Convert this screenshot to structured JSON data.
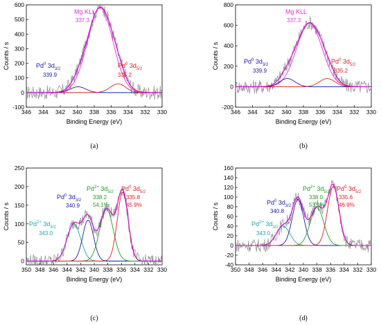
{
  "colors": {
    "raw": "#8c8c8c",
    "envelope": "#d400d4",
    "pd0_32": "#1a1aa6",
    "pd0_52": "#e01b1b",
    "pd2_32": "#1aa6a6",
    "pd2_52": "#1f9a1f",
    "mg": "#e030e0",
    "background": "#1f9a9a"
  },
  "chart_data": [
    {
      "id": "a",
      "type": "line",
      "panel_tag": "(a)",
      "xlabel": "Binding Energy (eV)",
      "ylabel": "Counts / s",
      "xlim": [
        346,
        330
      ],
      "ylim": [
        -100,
        600
      ],
      "xticks": [
        346,
        344,
        342,
        340,
        338,
        336,
        334,
        332,
        330
      ],
      "yticks": [
        -100,
        0,
        100,
        200,
        300,
        400,
        500,
        600
      ],
      "peaks": [
        {
          "label": "Mg KLL",
          "value": "337.3",
          "center": 337.3,
          "height": 580,
          "sigma": 1.5,
          "color_key": "mg"
        },
        {
          "label_main": "Pd",
          "label_sup": "0",
          "label_rest": " 3d",
          "label_sub": "3/2",
          "value": "339.9",
          "center": 339.9,
          "height": 40,
          "sigma": 0.9,
          "color_key": "pd0_32"
        },
        {
          "label_main": "Pd",
          "label_sup": "0",
          "label_rest": " 3d",
          "label_sub": "5/2",
          "value": "335.2",
          "center": 335.2,
          "height": 60,
          "sigma": 0.9,
          "color_key": "pd0_52"
        }
      ]
    },
    {
      "id": "b",
      "type": "line",
      "panel_tag": "(b)",
      "xlabel": "Binding Energy (eV)",
      "ylabel": "Counts / s",
      "xlim": [
        346,
        330
      ],
      "ylim": [
        -200,
        800
      ],
      "xticks": [
        346,
        344,
        342,
        340,
        338,
        336,
        334,
        332,
        330
      ],
      "yticks": [
        -200,
        0,
        200,
        400,
        600,
        800
      ],
      "peaks": [
        {
          "label": "Mg KLL",
          "value": "337.3",
          "center": 337.3,
          "height": 620,
          "sigma": 1.5,
          "color_key": "mg"
        },
        {
          "label_main": "Pd",
          "label_sup": "0",
          "label_rest": " 3d",
          "label_sub": "3/2",
          "value": "339.9",
          "center": 339.9,
          "height": 80,
          "sigma": 0.9,
          "color_key": "pd0_32"
        },
        {
          "label_main": "Pd",
          "label_sup": "0",
          "label_rest": " 3d",
          "label_sub": "5/2",
          "value": "335.2",
          "center": 335.2,
          "height": 80,
          "sigma": 0.9,
          "color_key": "pd0_52"
        }
      ]
    },
    {
      "id": "c",
      "type": "line",
      "panel_tag": "(c)",
      "xlabel": "Binding Energy (eV)",
      "ylabel": "Counts / s",
      "xlim": [
        350,
        330
      ],
      "ylim": [
        -10,
        250
      ],
      "xticks": [
        350,
        348,
        346,
        344,
        342,
        340,
        338,
        336,
        334,
        332,
        330
      ],
      "yticks": [
        0,
        50,
        100,
        150,
        200,
        250
      ],
      "peaks": [
        {
          "label_main": "Pd",
          "label_sup": "2+",
          "label_rest": " 3d",
          "label_sub": "3/2",
          "value": "343.0",
          "center": 343.0,
          "height": 100,
          "sigma": 1.0,
          "color_key": "pd2_32"
        },
        {
          "label_main": "Pd",
          "label_sup": "0",
          "label_rest": " 3d",
          "label_sub": "3/2",
          "value": "340.9",
          "center": 340.9,
          "height": 110,
          "sigma": 0.8,
          "color_key": "pd0_32"
        },
        {
          "label_main": "Pd",
          "label_sup": "2+",
          "label_rest": " 3d",
          "label_sub": "5/2",
          "value": "338.2",
          "pct": "54.1%",
          "center": 338.2,
          "height": 140,
          "sigma": 1.0,
          "color_key": "pd2_52"
        },
        {
          "label_main": "Pd",
          "label_sup": "0",
          "label_rest": " 3d",
          "label_sub": "5/2",
          "value": "335.8",
          "pct": "45.9%",
          "center": 335.8,
          "height": 185,
          "sigma": 0.8,
          "color_key": "pd0_52"
        }
      ]
    },
    {
      "id": "d",
      "type": "line",
      "panel_tag": "(d)",
      "xlabel": "Binding Energy (eV)",
      "ylabel": "Counts / s",
      "xlim": [
        350,
        330
      ],
      "ylim": [
        -40,
        160
      ],
      "xticks": [
        350,
        348,
        346,
        344,
        342,
        340,
        338,
        336,
        334,
        332,
        330
      ],
      "yticks": [
        -40,
        -20,
        0,
        20,
        40,
        60,
        80,
        100,
        120,
        140,
        160
      ],
      "peaks": [
        {
          "label_main": "Pd",
          "label_sup": "2+",
          "label_rest": " 3d",
          "label_sub": "3/2",
          "value": "343.0",
          "center": 343.0,
          "height": 40,
          "sigma": 1.0,
          "color_key": "pd2_32"
        },
        {
          "label_main": "Pd",
          "label_sup": "0",
          "label_rest": " 3d",
          "label_sub": "3/2",
          "value": "340.8",
          "center": 340.8,
          "height": 95,
          "sigma": 0.85,
          "color_key": "pd0_32"
        },
        {
          "label_main": "Pd",
          "label_sup": "2+",
          "label_rest": " 3d",
          "label_sub": "5/2",
          "value": "338.0",
          "pct": "53.1%",
          "center": 338.0,
          "height": 78,
          "sigma": 1.0,
          "color_key": "pd2_52"
        },
        {
          "label_main": "Pd",
          "label_sup": "0",
          "label_rest": " 3d",
          "label_sub": "5/2",
          "value": "335.6",
          "pct": "46.9%",
          "center": 335.6,
          "height": 122,
          "sigma": 0.85,
          "color_key": "pd0_52"
        }
      ]
    }
  ]
}
